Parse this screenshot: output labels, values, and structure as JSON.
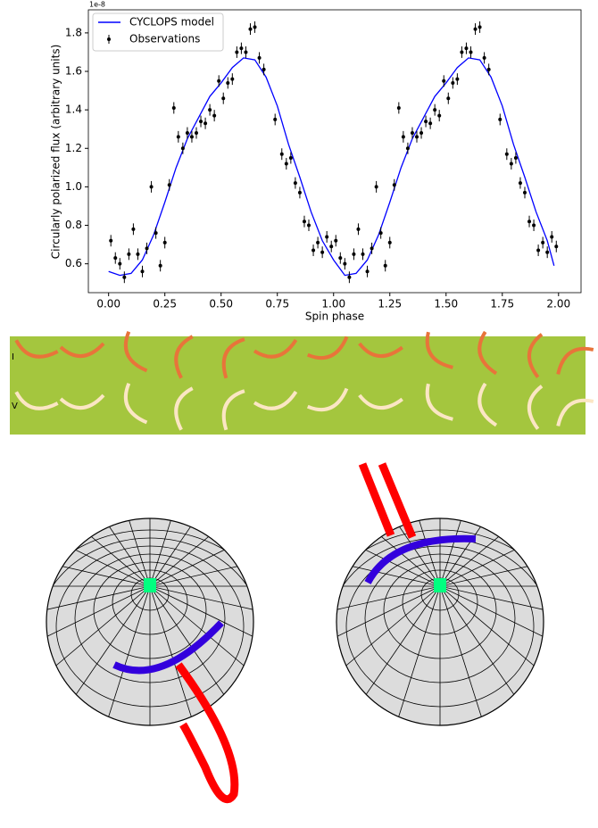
{
  "chart_data": {
    "type": "line",
    "offset_label": "1e-8",
    "xlabel": "Spin phase",
    "ylabel": "Circularly polarized flux (arbitrary units)",
    "xlim": [
      -0.09,
      2.1
    ],
    "ylim": [
      0.45,
      1.92
    ],
    "xticks": [
      {
        "value": 0,
        "label": "0.00"
      },
      {
        "value": 0.25,
        "label": "0.25"
      },
      {
        "value": 0.5,
        "label": "0.50"
      },
      {
        "value": 0.75,
        "label": "0.75"
      },
      {
        "value": 1,
        "label": "1.00"
      },
      {
        "value": 1.25,
        "label": "1.25"
      },
      {
        "value": 1.5,
        "label": "1.50"
      },
      {
        "value": 1.75,
        "label": "1.75"
      },
      {
        "value": 2,
        "label": "2.00"
      }
    ],
    "yticks": [
      0.6,
      0.8,
      {
        "value": 1,
        "label": "1.0"
      },
      1.2,
      1.4,
      1.6,
      1.8
    ],
    "legend": "upper left",
    "series": [
      {
        "name": "CYCLOPS model",
        "type": "line",
        "color": "#0000ff",
        "x": [
          0,
          0.05,
          0.1,
          0.15,
          0.2,
          0.25,
          0.3,
          0.35,
          0.4,
          0.45,
          0.5,
          0.55,
          0.6,
          0.65,
          0.7,
          0.75,
          0.8,
          0.85,
          0.9,
          0.95,
          1,
          1.05,
          1.1,
          1.15,
          1.2,
          1.25,
          1.3,
          1.35,
          1.4,
          1.45,
          1.5,
          1.55,
          1.6,
          1.65,
          1.7,
          1.75,
          1.8,
          1.85,
          1.9,
          1.95,
          1.98
        ],
        "values": [
          0.56,
          0.54,
          0.55,
          0.62,
          0.75,
          0.92,
          1.1,
          1.25,
          1.36,
          1.47,
          1.54,
          1.62,
          1.67,
          1.66,
          1.57,
          1.42,
          1.22,
          1.05,
          0.87,
          0.72,
          0.62,
          0.54,
          0.55,
          0.62,
          0.75,
          0.92,
          1.1,
          1.25,
          1.36,
          1.47,
          1.54,
          1.62,
          1.67,
          1.66,
          1.57,
          1.42,
          1.22,
          1.05,
          0.87,
          0.72,
          0.59
        ]
      },
      {
        "name": "Observations",
        "type": "errorbar",
        "color": "#000000",
        "yerr": 0.03,
        "x": [
          0.01,
          0.03,
          0.05,
          0.07,
          0.09,
          0.11,
          0.13,
          0.15,
          0.17,
          0.19,
          0.21,
          0.23,
          0.25,
          0.27,
          0.29,
          0.31,
          0.33,
          0.35,
          0.37,
          0.39,
          0.41,
          0.43,
          0.45,
          0.47,
          0.49,
          0.51,
          0.53,
          0.55,
          0.57,
          0.59,
          0.61,
          0.63,
          0.65,
          0.67,
          0.69,
          0.74,
          0.77,
          0.79,
          0.81,
          0.83,
          0.85,
          0.87,
          0.89,
          0.91,
          0.93,
          0.95,
          0.97,
          0.99,
          1.01,
          1.03,
          1.05,
          1.07,
          1.09,
          1.11,
          1.13,
          1.15,
          1.17,
          1.19,
          1.21,
          1.23,
          1.25,
          1.27,
          1.29,
          1.31,
          1.33,
          1.35,
          1.37,
          1.39,
          1.41,
          1.43,
          1.45,
          1.47,
          1.49,
          1.51,
          1.53,
          1.55,
          1.57,
          1.59,
          1.61,
          1.63,
          1.65,
          1.67,
          1.69,
          1.74,
          1.77,
          1.79,
          1.81,
          1.83,
          1.85,
          1.87,
          1.89,
          1.91,
          1.93,
          1.95,
          1.97,
          1.99
        ],
        "values": [
          0.72,
          0.63,
          0.6,
          0.53,
          0.65,
          0.78,
          0.65,
          0.56,
          0.68,
          1.0,
          0.76,
          0.59,
          0.71,
          1.01,
          1.41,
          1.26,
          1.2,
          1.28,
          1.26,
          1.28,
          1.34,
          1.33,
          1.4,
          1.37,
          1.55,
          1.46,
          1.54,
          1.56,
          1.7,
          1.72,
          1.7,
          1.82,
          1.83,
          1.67,
          1.61,
          1.35,
          1.17,
          1.12,
          1.15,
          1.02,
          0.97,
          0.82,
          0.8,
          0.67,
          0.71,
          0.66,
          0.74,
          0.69,
          0.72,
          0.63,
          0.6,
          0.53,
          0.65,
          0.78,
          0.65,
          0.56,
          0.68,
          1.0,
          0.76,
          0.59,
          0.71,
          1.01,
          1.41,
          1.26,
          1.2,
          1.28,
          1.26,
          1.28,
          1.34,
          1.33,
          1.4,
          1.37,
          1.55,
          1.46,
          1.54,
          1.56,
          1.7,
          1.72,
          1.7,
          1.82,
          1.83,
          1.67,
          1.61,
          1.35,
          1.17,
          1.12,
          1.15,
          1.02,
          0.97,
          0.82,
          0.8,
          0.67,
          0.71,
          0.66,
          0.74,
          0.69
        ]
      }
    ]
  },
  "strip": {
    "labels": [
      "I",
      "V"
    ]
  }
}
